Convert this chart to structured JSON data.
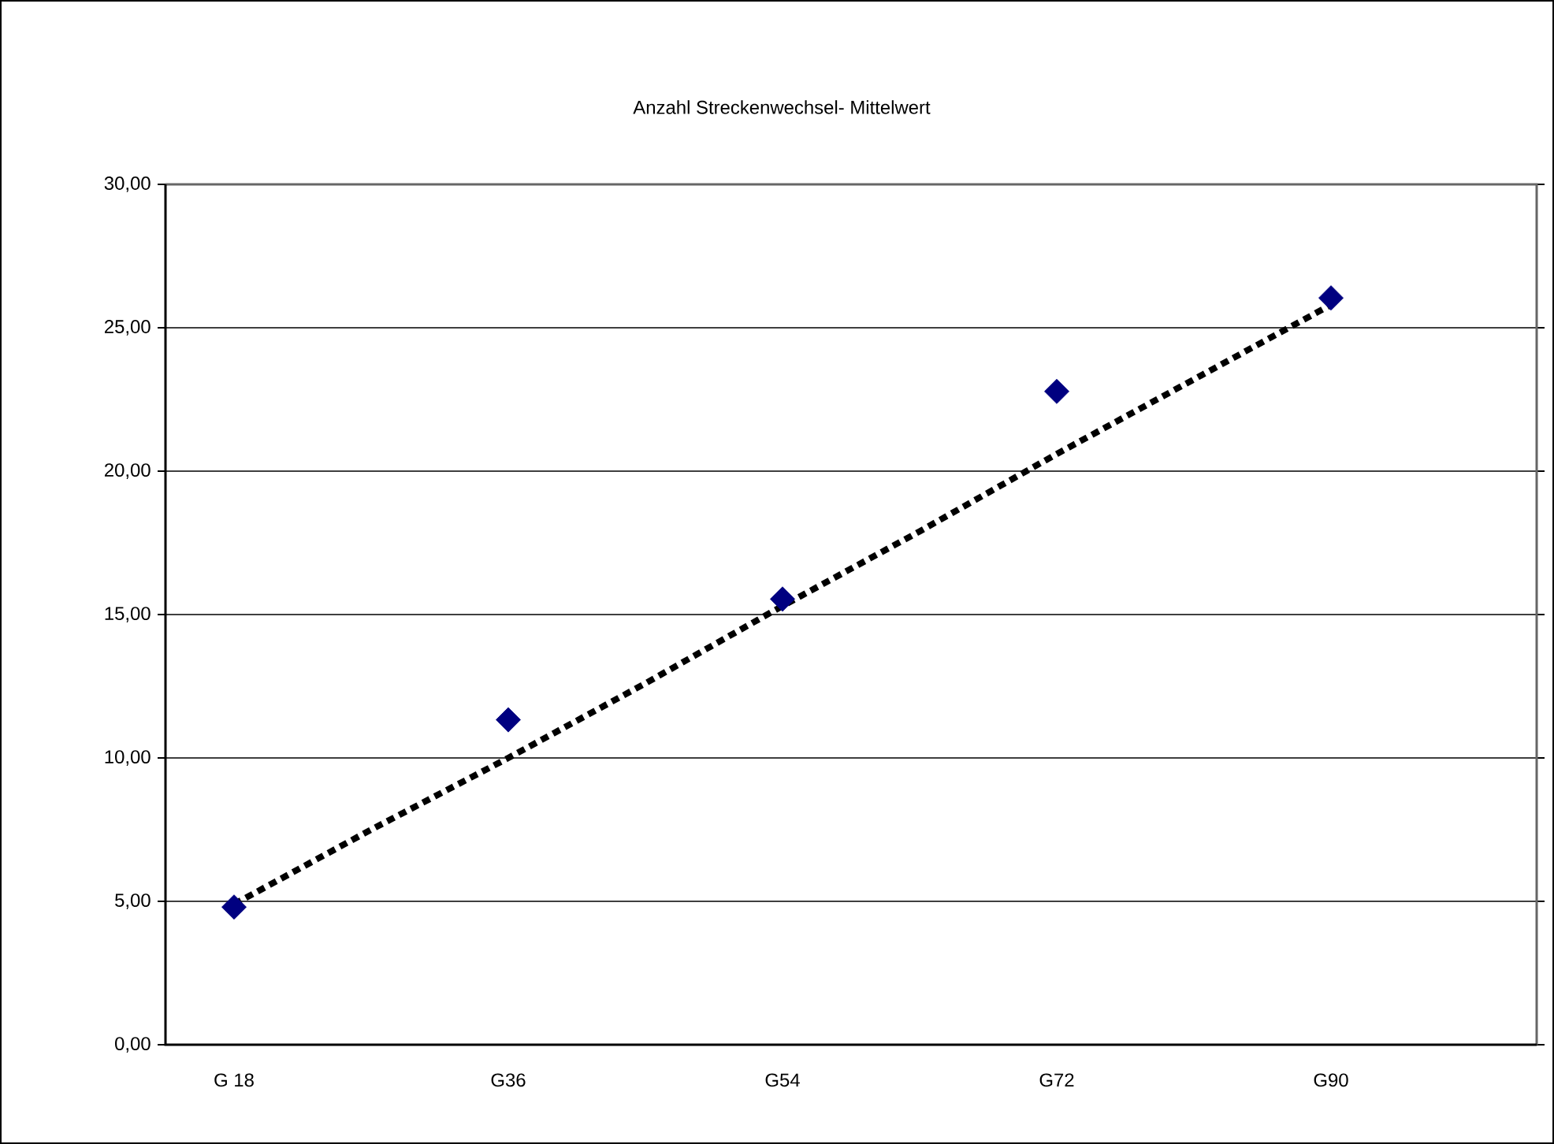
{
  "chart_data": {
    "type": "scatter",
    "title": "Anzahl Streckenwechsel-  Mittelwert",
    "categories": [
      "G 18",
      null,
      "G36",
      null,
      "G54",
      null,
      "G72",
      null,
      "G90",
      null
    ],
    "series": [
      {
        "color": "#000080",
        "marker": "diamond",
        "values": [
          4.8,
          null,
          11.33,
          null,
          15.54,
          null,
          22.78,
          null,
          26.04,
          null
        ]
      },
      {
        "type": "line",
        "color": "#000000",
        "marker": "none",
        "line_style": "dotted",
        "values": [
          4.9,
          7.5,
          10.0,
          12.6,
          15.3,
          17.9,
          20.6,
          23.2,
          25.8,
          null
        ]
      }
    ],
    "ylim": [
      0,
      30
    ],
    "yticks": [
      {
        "value": 0,
        "label": "0,00"
      },
      {
        "value": 5,
        "label": "5,00"
      },
      {
        "value": 10,
        "label": "10,00"
      },
      {
        "value": 15,
        "label": "15,00"
      },
      {
        "value": 20,
        "label": "20,00"
      },
      {
        "value": 25,
        "label": "25,00"
      },
      {
        "value": 30,
        "label": "30,00"
      }
    ],
    "grid": "y"
  }
}
